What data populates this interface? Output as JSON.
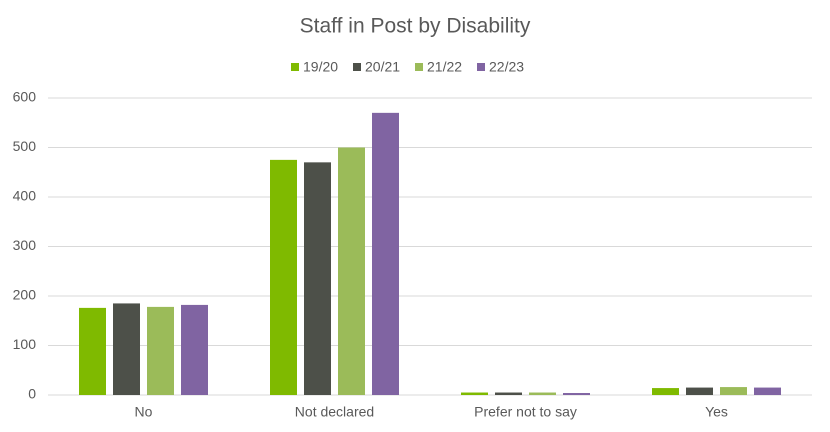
{
  "chart_data": {
    "type": "bar",
    "title": "Staff in Post by Disability",
    "categories": [
      "No",
      "Not declared",
      "Prefer not to say",
      "Yes"
    ],
    "series": [
      {
        "name": "19/20",
        "color": "#7fba00",
        "values": [
          176,
          475,
          5,
          14
        ]
      },
      {
        "name": "20/21",
        "color": "#4d5049",
        "values": [
          185,
          470,
          5,
          15
        ]
      },
      {
        "name": "21/22",
        "color": "#9bbb59",
        "values": [
          178,
          500,
          5,
          16
        ]
      },
      {
        "name": "22/23",
        "color": "#8064a2",
        "values": [
          182,
          570,
          4,
          15
        ]
      }
    ],
    "ylim": [
      0,
      600
    ],
    "yticks": [
      0,
      100,
      200,
      300,
      400,
      500,
      600
    ],
    "grid": true,
    "legend": "top"
  }
}
